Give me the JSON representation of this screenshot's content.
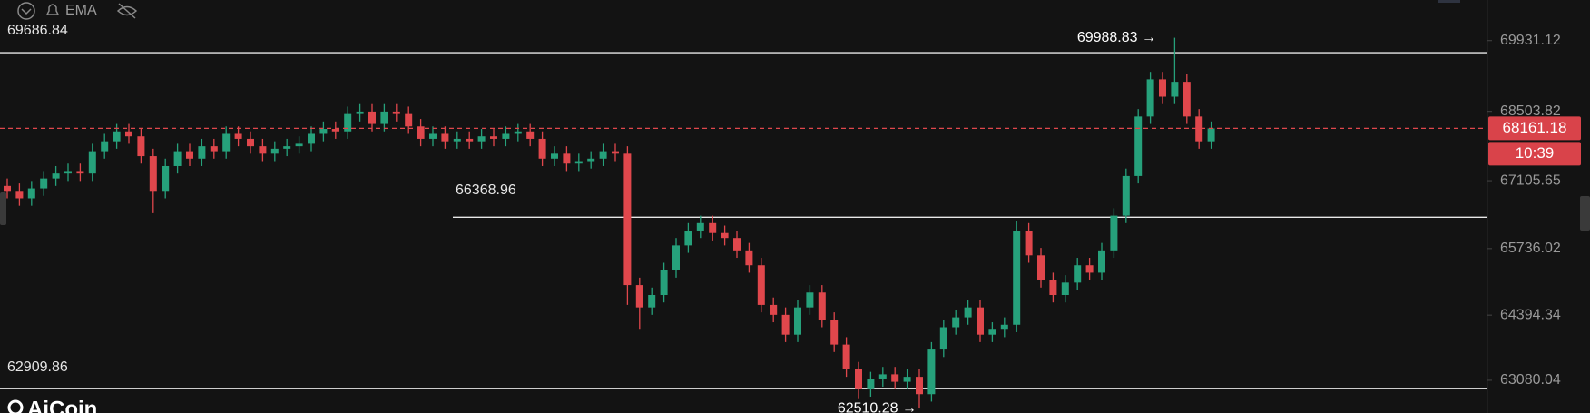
{
  "chart_data": {
    "type": "candlestick",
    "indicator": "EMA",
    "logo": "AiCoin",
    "up_color": "#26a17b",
    "down_color": "#e0474c",
    "ylim": [
      62420,
      70750
    ],
    "yticks": [
      69931.12,
      68503.82,
      67105.65,
      65736.02,
      64394.34,
      63080.04
    ],
    "levels": [
      69686.84,
      66368.96,
      62909.86
    ],
    "current_price": 68161.18,
    "countdown": "10:39",
    "high_label": {
      "value": 69988.83,
      "label": "69988.83 →"
    },
    "low_label": {
      "value": 62510.28,
      "label": "62510.28 →"
    },
    "open": [
      67000,
      66900,
      66750,
      66950,
      67150,
      67250,
      67300,
      67250,
      67700,
      67900,
      68100,
      68000,
      67600,
      66900,
      67400,
      67700,
      67550,
      67800,
      67700,
      68050,
      67950,
      67800,
      67650,
      67750,
      67800,
      67850,
      68050,
      68150,
      68100,
      68450,
      68500,
      68250,
      68500,
      68450,
      68200,
      67950,
      68050,
      67900,
      67950,
      67900,
      68000,
      67950,
      68050,
      68100,
      67950,
      67550,
      67650,
      67450,
      67500,
      67550,
      67700,
      67650,
      65000,
      64550,
      64800,
      65300,
      65800,
      66100,
      66250,
      66050,
      65950,
      65700,
      65400,
      64600,
      64400,
      64000,
      64550,
      64850,
      64300,
      63800,
      63300,
      62900,
      63100,
      63200,
      63050,
      63150,
      62800,
      63700,
      64150,
      64350,
      64550,
      64000,
      64100,
      64200,
      66100,
      65600,
      65100,
      64800,
      65050,
      65400,
      65250,
      65700,
      66400,
      67200,
      68400,
      69150,
      68800,
      69100,
      68400,
      67900
    ],
    "high": [
      67150,
      67050,
      67100,
      67300,
      67400,
      67450,
      67450,
      67850,
      68050,
      68250,
      68250,
      68150,
      67750,
      67550,
      67850,
      67850,
      67950,
      67950,
      68200,
      68200,
      68100,
      67950,
      67900,
      67950,
      68000,
      68200,
      68300,
      68300,
      68600,
      68650,
      68650,
      68650,
      68650,
      68600,
      68350,
      68200,
      68200,
      68100,
      68100,
      68150,
      68150,
      68200,
      68250,
      68250,
      68100,
      67800,
      67800,
      67650,
      67700,
      67850,
      67850,
      67800,
      65150,
      64950,
      65450,
      65950,
      66250,
      66400,
      66400,
      66200,
      66100,
      65850,
      65550,
      64750,
      64550,
      64700,
      65000,
      65000,
      64450,
      63950,
      63450,
      63250,
      63350,
      63350,
      63300,
      63300,
      63850,
      64300,
      64500,
      64700,
      64700,
      64250,
      64350,
      66300,
      66250,
      65750,
      65250,
      65200,
      65550,
      65550,
      65850,
      66550,
      67350,
      68550,
      69300,
      69300,
      69988.83,
      69250,
      68550,
      68300
    ],
    "low": [
      66750,
      66600,
      66600,
      66800,
      67000,
      67100,
      67100,
      67100,
      67550,
      67750,
      67850,
      67450,
      66450,
      66750,
      67250,
      67400,
      67400,
      67550,
      67550,
      67800,
      67650,
      67500,
      67500,
      67600,
      67650,
      67700,
      67900,
      67950,
      67950,
      68300,
      68100,
      68100,
      68300,
      68050,
      67800,
      67800,
      67750,
      67750,
      67750,
      67750,
      67800,
      67800,
      67900,
      67800,
      67400,
      67400,
      67300,
      67300,
      67350,
      67400,
      67500,
      64600,
      64100,
      64400,
      64650,
      65150,
      65650,
      65950,
      65900,
      65800,
      65550,
      65250,
      64450,
      64250,
      63850,
      63850,
      64400,
      64150,
      63650,
      63150,
      62700,
      62750,
      62950,
      62900,
      62900,
      62510.28,
      62650,
      63550,
      64000,
      64200,
      63850,
      63850,
      63950,
      64050,
      65450,
      64950,
      64650,
      64650,
      64900,
      65100,
      65100,
      65550,
      66250,
      67050,
      68250,
      68650,
      68650,
      68250,
      67750,
      67750
    ],
    "close": [
      66900,
      66750,
      66950,
      67150,
      67250,
      67300,
      67250,
      67700,
      67900,
      68100,
      68000,
      67600,
      66900,
      67400,
      67700,
      67550,
      67800,
      67700,
      68050,
      67950,
      67800,
      67650,
      67750,
      67800,
      67850,
      68050,
      68150,
      68100,
      68450,
      68500,
      68250,
      68500,
      68450,
      68200,
      67950,
      68050,
      67900,
      67950,
      67900,
      68000,
      67950,
      68050,
      68100,
      67950,
      67550,
      67650,
      67450,
      67500,
      67550,
      67700,
      67650,
      65000,
      64550,
      64800,
      65300,
      65800,
      66100,
      66250,
      66050,
      65950,
      65700,
      65400,
      64600,
      64400,
      64000,
      64550,
      64850,
      64300,
      63800,
      63300,
      62900,
      63100,
      63200,
      63050,
      63150,
      62800,
      63700,
      64150,
      64350,
      64550,
      64000,
      64100,
      64200,
      66100,
      65600,
      65100,
      64800,
      65050,
      65400,
      65250,
      65700,
      66400,
      67200,
      68400,
      69150,
      68800,
      69100,
      68400,
      67900,
      68161.18
    ]
  }
}
